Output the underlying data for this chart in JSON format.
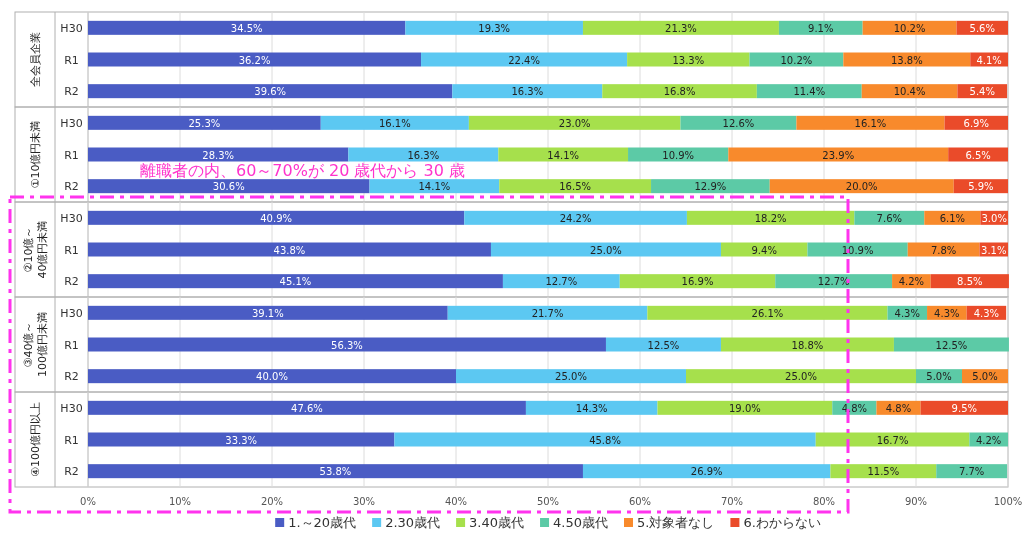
{
  "chart_data": [
    {
      "type": "bar",
      "orientation": "horizontal",
      "stacked": true,
      "title": "全会員企業",
      "categories": [
        "H30",
        "R1",
        "R2"
      ],
      "xlim": [
        0,
        100
      ],
      "xticks": [
        {
          "value": 0,
          "label": null
        },
        {
          "value": 10,
          "label": null
        },
        {
          "value": 20,
          "label": null
        },
        {
          "value": 30,
          "label": null
        },
        {
          "value": 40,
          "label": null
        },
        {
          "value": 50,
          "label": null
        },
        {
          "value": 60,
          "label": null
        },
        {
          "value": 70,
          "label": null
        },
        {
          "value": 80,
          "label": null
        },
        {
          "value": 90,
          "label": null
        },
        {
          "value": 100,
          "label": null
        }
      ],
      "tick_labels": "y",
      "grid": "x",
      "series": [
        {
          "color": "#4a5cc4",
          "values": [
            34.5,
            36.2,
            39.6
          ],
          "value_labels": [
            "34.5%",
            "36.2%",
            "39.6%"
          ]
        },
        {
          "color": "#5cc8f2",
          "values": [
            19.3,
            22.4,
            16.3
          ],
          "value_labels": [
            "19.3%",
            "22.4%",
            "16.3%"
          ]
        },
        {
          "color": "#a6e04c",
          "values": [
            21.3,
            13.3,
            16.8
          ],
          "value_labels": [
            "21.3%",
            "13.3%",
            "16.8%"
          ]
        },
        {
          "color": "#5ccaa6",
          "values": [
            9.1,
            10.2,
            11.4
          ],
          "value_labels": [
            "9.1%",
            "10.2%",
            "11.4%"
          ]
        },
        {
          "color": "#f88a2c",
          "values": [
            10.2,
            13.8,
            10.4
          ],
          "value_labels": [
            "10.2%",
            "13.8%",
            "10.4%"
          ]
        },
        {
          "color": "#ea4b2a",
          "values": [
            5.6,
            4.1,
            5.4
          ],
          "value_labels": [
            "5.6%",
            "4.1%",
            "5.4%"
          ]
        }
      ]
    },
    {
      "type": "bar",
      "orientation": "horizontal",
      "stacked": true,
      "title": "①10億円未満",
      "categories": [
        "H30",
        "R1",
        "R2"
      ],
      "xlim": [
        0,
        100
      ],
      "xticks": [
        {
          "value": 0,
          "label": null
        },
        {
          "value": 10,
          "label": null
        },
        {
          "value": 20,
          "label": null
        },
        {
          "value": 30,
          "label": null
        },
        {
          "value": 40,
          "label": null
        },
        {
          "value": 50,
          "label": null
        },
        {
          "value": 60,
          "label": null
        },
        {
          "value": 70,
          "label": null
        },
        {
          "value": 80,
          "label": null
        },
        {
          "value": 90,
          "label": null
        },
        {
          "value": 100,
          "label": null
        }
      ],
      "tick_labels": "y",
      "grid": "x",
      "annotations": [
        "離職者の内、60～70%が 20 歳代から 30 歳"
      ],
      "series": [
        {
          "color": "#4a5cc4",
          "values": [
            25.3,
            28.3,
            30.6
          ],
          "value_labels": [
            "25.3%",
            "28.3%",
            "30.6%"
          ]
        },
        {
          "color": "#5cc8f2",
          "values": [
            16.1,
            16.3,
            14.1
          ],
          "value_labels": [
            "16.1%",
            "16.3%",
            "14.1%"
          ]
        },
        {
          "color": "#a6e04c",
          "values": [
            23.0,
            14.1,
            16.5
          ],
          "value_labels": [
            "23.0%",
            "14.1%",
            "16.5%"
          ]
        },
        {
          "color": "#5ccaa6",
          "values": [
            12.6,
            10.9,
            12.9
          ],
          "value_labels": [
            "12.6%",
            "10.9%",
            "12.9%"
          ]
        },
        {
          "color": "#f88a2c",
          "values": [
            16.1,
            23.9,
            20.0
          ],
          "value_labels": [
            "16.1%",
            "23.9%",
            "20.0%"
          ]
        },
        {
          "color": "#ea4b2a",
          "values": [
            6.9,
            6.5,
            5.9
          ],
          "value_labels": [
            "6.9%",
            "6.5%",
            "5.9%"
          ]
        }
      ]
    },
    {
      "type": "bar",
      "orientation": "horizontal",
      "stacked": true,
      "title": "②10億～40億円未満",
      "categories": [
        "H30",
        "R1",
        "R2"
      ],
      "xlim": [
        0,
        100
      ],
      "xticks": [
        {
          "value": 0,
          "label": null
        },
        {
          "value": 10,
          "label": null
        },
        {
          "value": 20,
          "label": null
        },
        {
          "value": 30,
          "label": null
        },
        {
          "value": 40,
          "label": null
        },
        {
          "value": 50,
          "label": null
        },
        {
          "value": 60,
          "label": null
        },
        {
          "value": 70,
          "label": null
        },
        {
          "value": 80,
          "label": null
        },
        {
          "value": 90,
          "label": null
        },
        {
          "value": 100,
          "label": null
        }
      ],
      "tick_labels": "y",
      "grid": "x",
      "series": [
        {
          "color": "#4a5cc4",
          "values": [
            40.9,
            43.8,
            45.1
          ],
          "value_labels": [
            "40.9%",
            "43.8%",
            "45.1%"
          ]
        },
        {
          "color": "#5cc8f2",
          "values": [
            24.2,
            25.0,
            12.7
          ],
          "value_labels": [
            "24.2%",
            "25.0%",
            "12.7%"
          ]
        },
        {
          "color": "#a6e04c",
          "values": [
            18.2,
            9.4,
            16.9
          ],
          "value_labels": [
            "18.2%",
            "9.4%",
            "16.9%"
          ]
        },
        {
          "color": "#5ccaa6",
          "values": [
            7.6,
            10.9,
            12.7
          ],
          "value_labels": [
            "7.6%",
            "10.9%",
            "12.7%"
          ]
        },
        {
          "color": "#f88a2c",
          "values": [
            6.1,
            7.8,
            4.2
          ],
          "value_labels": [
            "6.1%",
            "7.8%",
            "4.2%"
          ]
        },
        {
          "color": "#ea4b2a",
          "values": [
            3.0,
            3.1,
            8.5
          ],
          "value_labels": [
            "3.0%",
            "3.1%",
            "8.5%"
          ]
        }
      ]
    },
    {
      "type": "bar",
      "orientation": "horizontal",
      "stacked": true,
      "title": "③40億～100億円未満",
      "categories": [
        "H30",
        "R1",
        "R2"
      ],
      "xlim": [
        0,
        100
      ],
      "xticks": [
        {
          "value": 0,
          "label": null
        },
        {
          "value": 10,
          "label": null
        },
        {
          "value": 20,
          "label": null
        },
        {
          "value": 30,
          "label": null
        },
        {
          "value": 40,
          "label": null
        },
        {
          "value": 50,
          "label": null
        },
        {
          "value": 60,
          "label": null
        },
        {
          "value": 70,
          "label": null
        },
        {
          "value": 80,
          "label": null
        },
        {
          "value": 90,
          "label": null
        },
        {
          "value": 100,
          "label": null
        }
      ],
      "tick_labels": "y",
      "grid": "x",
      "series": [
        {
          "color": "#4a5cc4",
          "values": [
            39.1,
            56.3,
            40.0
          ],
          "value_labels": [
            "39.1%",
            "56.3%",
            "40.0%"
          ]
        },
        {
          "color": "#5cc8f2",
          "values": [
            21.7,
            12.5,
            25.0
          ],
          "value_labels": [
            "21.7%",
            "12.5%",
            "25.0%"
          ]
        },
        {
          "color": "#a6e04c",
          "values": [
            26.1,
            18.8,
            25.0
          ],
          "value_labels": [
            "26.1%",
            "18.8%",
            "25.0%"
          ]
        },
        {
          "color": "#5ccaa6",
          "values": [
            4.3,
            12.5,
            5.0
          ],
          "value_labels": [
            "4.3%",
            "12.5%",
            "5.0%"
          ]
        },
        {
          "color": "#f88a2c",
          "values": [
            4.3,
            null,
            5.0
          ],
          "value_labels": [
            "4.3%",
            null,
            "5.0%"
          ]
        },
        {
          "color": "#ea4b2a",
          "values": [
            4.3,
            null,
            null
          ],
          "value_labels": [
            "4.3%",
            null,
            null
          ]
        }
      ]
    },
    {
      "type": "bar",
      "orientation": "horizontal",
      "stacked": true,
      "title": "④100億円以上",
      "categories": [
        "H30",
        "R1",
        "R2"
      ],
      "xlim": [
        0,
        100
      ],
      "xticks": [
        {
          "value": 0,
          "label": "0%"
        },
        {
          "value": 10,
          "label": "10%"
        },
        {
          "value": 20,
          "label": "20%"
        },
        {
          "value": 30,
          "label": "30%"
        },
        {
          "value": 40,
          "label": "40%"
        },
        {
          "value": 50,
          "label": "50%"
        },
        {
          "value": 60,
          "label": "60%"
        },
        {
          "value": 70,
          "label": "70%"
        },
        {
          "value": 80,
          "label": "80%"
        },
        {
          "value": 90,
          "label": "90%"
        },
        {
          "value": 100,
          "label": "100%"
        }
      ],
      "grid": "x",
      "legend": "bottom",
      "series": [
        {
          "name": "1.～20歳代",
          "color": "#4a5cc4",
          "values": [
            47.6,
            33.3,
            53.8
          ],
          "value_labels": [
            "47.6%",
            "33.3%",
            "53.8%"
          ]
        },
        {
          "name": "2.30歳代",
          "color": "#5cc8f2",
          "values": [
            14.3,
            45.8,
            26.9
          ],
          "value_labels": [
            "14.3%",
            "45.8%",
            "26.9%"
          ]
        },
        {
          "name": "3.40歳代",
          "color": "#a6e04c",
          "values": [
            19.0,
            16.7,
            11.5
          ],
          "value_labels": [
            "19.0%",
            "16.7%",
            "11.5%"
          ]
        },
        {
          "name": "4.50歳代",
          "color": "#5ccaa6",
          "values": [
            4.8,
            4.2,
            7.7
          ],
          "value_labels": [
            "4.8%",
            "4.2%",
            "7.7%"
          ]
        },
        {
          "name": "5.対象者なし",
          "color": "#f88a2c",
          "values": [
            4.8,
            null,
            null
          ],
          "value_labels": [
            "4.8%",
            null,
            null
          ]
        },
        {
          "name": "6.わからない",
          "color": "#ea4b2a",
          "values": [
            9.5,
            null,
            null
          ],
          "value_labels": [
            "9.5%",
            null,
            null
          ]
        }
      ]
    }
  ]
}
